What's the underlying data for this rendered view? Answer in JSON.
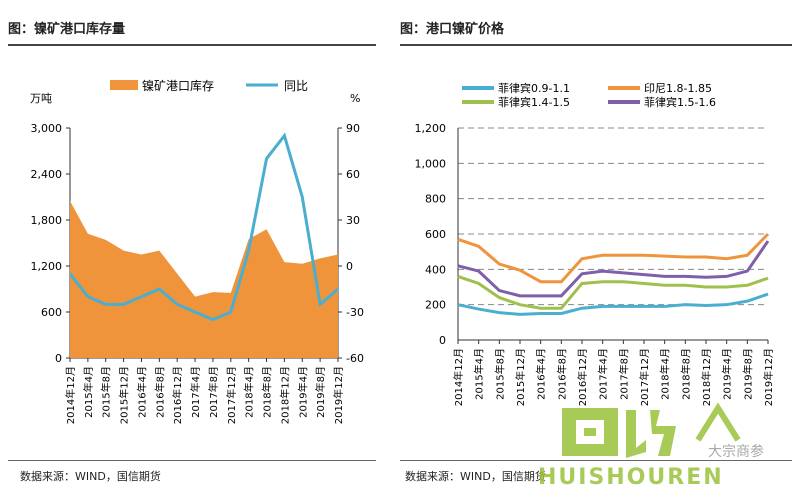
{
  "left": {
    "title": "图：镍矿港口库存量",
    "source": "数据来源：WIND，国信期货",
    "units": {
      "left": "万吨",
      "right": "%"
    },
    "legend": [
      {
        "name": "镍矿港口库存",
        "color": "#f0943c"
      },
      {
        "name": "同比",
        "color": "#4aaed0"
      }
    ],
    "y_ticks": [
      "3,000",
      "2,400",
      "1,800",
      "1,200",
      "600",
      "0"
    ],
    "y2_ticks": [
      "90",
      "60",
      "30",
      "0",
      "-30",
      "-60"
    ],
    "x_ticks": [
      "2014年12月",
      "2015年4月",
      "2015年8月",
      "2015年12月",
      "2016年4月",
      "2016年8月",
      "2016年12月",
      "2017年4月",
      "2017年8月",
      "2017年12月",
      "2018年4月",
      "2018年8月",
      "2018年12月",
      "2019年4月",
      "2019年8月",
      "2019年12月"
    ]
  },
  "right": {
    "title": "图：港口镍矿价格",
    "source": "数据来源：WIND，国信期货",
    "legend": [
      {
        "name": "菲律宾0.9-1.1",
        "color": "#4aaed0"
      },
      {
        "name": "印尼1.8-1.85",
        "color": "#f0943c"
      },
      {
        "name": "菲律宾1.4-1.5",
        "color": "#9fc04c"
      },
      {
        "name": "菲律宾1.5-1.6",
        "color": "#7f5fa8"
      }
    ],
    "y_ticks": [
      "1,200",
      "1,000",
      "800",
      "600",
      "400",
      "200",
      "0"
    ],
    "x_ticks": [
      "2014年12月",
      "2015年4月",
      "2015年8月",
      "2015年12月",
      "2016年4月",
      "2016年8月",
      "2016年12月",
      "2017年4月",
      "2017年8月",
      "2017年12月",
      "2018年4月",
      "2018年8月",
      "2018年12月",
      "2019年4月",
      "2019年8月",
      "2019年12月"
    ]
  },
  "watermark": {
    "text1": "回收",
    "text2": "HUISHOUREN",
    "text3": "大宗商参"
  },
  "chart_data": [
    {
      "type": "area",
      "x": [
        "2014年12月",
        "2015年4月",
        "2015年8月",
        "2015年12月",
        "2016年4月",
        "2016年8月",
        "2016年12月",
        "2017年4月",
        "2017年8月",
        "2017年12月",
        "2018年4月",
        "2018年8月",
        "2018年12月",
        "2019年4月",
        "2019年8月",
        "2019年12月"
      ],
      "series": [
        {
          "name": "镍矿港口库存",
          "axis": "left",
          "values": [
            2050,
            1620,
            1540,
            1400,
            1350,
            1400,
            1100,
            800,
            860,
            850,
            1550,
            1680,
            1250,
            1230,
            1300,
            1350
          ]
        },
        {
          "name": "同比",
          "axis": "right",
          "values": [
            -5,
            -20,
            -25,
            -25,
            -20,
            -15,
            -25,
            -30,
            -35,
            -30,
            10,
            70,
            85,
            45,
            -25,
            -15
          ]
        }
      ],
      "ylim": [
        0,
        3000
      ],
      "y2lim": [
        -60,
        90
      ],
      "ylabel": "万吨",
      "y2label": "%"
    },
    {
      "type": "line",
      "x": [
        "2014年12月",
        "2015年4月",
        "2015年8月",
        "2015年12月",
        "2016年4月",
        "2016年8月",
        "2016年12月",
        "2017年4月",
        "2017年8月",
        "2017年12月",
        "2018年4月",
        "2018年8月",
        "2018年12月",
        "2019年4月",
        "2019年8月",
        "2019年12月"
      ],
      "series": [
        {
          "name": "菲律宾0.9-1.1",
          "values": [
            200,
            175,
            155,
            145,
            150,
            150,
            180,
            190,
            190,
            190,
            190,
            200,
            195,
            200,
            220,
            260
          ]
        },
        {
          "name": "印尼1.8-1.85",
          "values": [
            570,
            530,
            430,
            395,
            330,
            330,
            460,
            480,
            480,
            480,
            475,
            470,
            470,
            460,
            480,
            600
          ]
        },
        {
          "name": "菲律宾1.4-1.5",
          "values": [
            360,
            320,
            240,
            200,
            180,
            180,
            320,
            330,
            330,
            320,
            310,
            310,
            300,
            300,
            310,
            350
          ]
        },
        {
          "name": "菲律宾1.5-1.6",
          "values": [
            420,
            390,
            280,
            250,
            250,
            250,
            375,
            390,
            380,
            370,
            360,
            360,
            355,
            360,
            390,
            560
          ]
        }
      ],
      "ylim": [
        0,
        1200
      ]
    }
  ]
}
